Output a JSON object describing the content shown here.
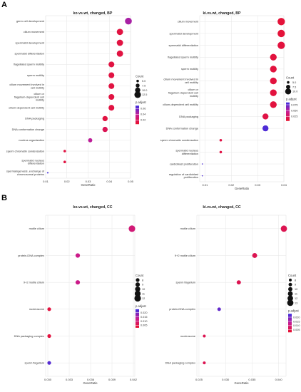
{
  "panel_letters": [
    "A",
    "B"
  ],
  "colors": {
    "gradient_low": "#e8102c",
    "gradient_mid": "#c81c92",
    "gradient_high": "#3c2ee0",
    "grid": "#e6e6e6",
    "axis_text": "#333333"
  },
  "chart_data": [
    {
      "type": "scatter",
      "title": "ko.vs.wt, changed, BP",
      "xlabel": "GeneRatio",
      "ylabel": "",
      "xlim": [
        0.01,
        0.05
      ],
      "xticks": [
        "0.01",
        "0.02",
        "0.03",
        "0.04",
        "0.05"
      ],
      "xtick_values": [
        0.01,
        0.02,
        0.03,
        0.04,
        0.05
      ],
      "grid": true,
      "legend_placement": "right",
      "size_legend": {
        "title": "Count",
        "labels": [
          "5.0",
          "7.5",
          "10.0",
          "12.5"
        ],
        "values": [
          5,
          7.5,
          10,
          12.5
        ]
      },
      "color_legend": {
        "title": "p.adjust",
        "labels": [
          "0.06",
          "0.04",
          "0.02"
        ],
        "values": [
          0.06,
          0.04,
          0.02
        ],
        "range": [
          0.005,
          0.07
        ]
      },
      "categories": [
        "germ cell development",
        "cilium movement",
        "spermatid development",
        "spermatid differentiation",
        "flagellated sperm motility",
        "sperm motility",
        "cilium movement involved in|cell motility",
        "cilium or|flagellum-dependent cell|motility",
        "cilium-dependent cell motility",
        "DNA packaging",
        "DNA conformation change",
        "nucleus organization",
        "sperm chromatin condensation",
        "spermatid nucleus|differentiation",
        "spermatogenesis, exchange of|chromosomal proteins"
      ],
      "gene_ratio": [
        0.049,
        0.045,
        0.045,
        0.045,
        0.041,
        0.041,
        0.041,
        0.041,
        0.041,
        0.038,
        0.038,
        0.031,
        0.019,
        0.019,
        0.011
      ],
      "count": [
        13,
        12,
        12,
        12,
        11,
        11,
        11,
        11,
        11,
        10,
        10,
        8,
        5,
        5,
        3
      ],
      "p_adjust": [
        0.045,
        0.012,
        0.012,
        0.012,
        0.012,
        0.012,
        0.012,
        0.012,
        0.012,
        0.012,
        0.018,
        0.04,
        0.012,
        0.012,
        0.068
      ]
    },
    {
      "type": "scatter",
      "title": "ki.vs.wt, changed, BP",
      "xlabel": "GeneRatio",
      "ylabel": "",
      "xlim": [
        0.008,
        0.04
      ],
      "xticks": [
        "0.01",
        "0.02",
        "0.03",
        "0.04"
      ],
      "xtick_values": [
        0.01,
        0.02,
        0.03,
        0.04
      ],
      "grid": true,
      "legend_placement": "right",
      "size_legend": {
        "title": "Count",
        "labels": [
          "5.0",
          "7.5",
          "10.0"
        ],
        "values": [
          5,
          7.5,
          10
        ]
      },
      "color_legend": {
        "title": "p.adjust",
        "labels": [
          "0.075",
          "0.050",
          "0.025"
        ],
        "values": [
          0.075,
          0.05,
          0.025
        ],
        "range": [
          0.005,
          0.085
        ]
      },
      "categories": [
        "cilium movement",
        "spermatid development",
        "spermatid differentiation",
        "flagellated sperm motility",
        "sperm motility",
        "cilium movement involved in|cell motility",
        "cilium or|flagellum-dependent cell|motility",
        "cilium-dependent cell motility",
        "DNA packaging",
        "DNA conformation change",
        "sperm chromatin condensation",
        "spermatid nucleus|differentiation",
        "cardioblast proliferation",
        "regulation of cardioblast|proliferation"
      ],
      "gene_ratio": [
        0.039,
        0.039,
        0.039,
        0.036,
        0.036,
        0.036,
        0.036,
        0.036,
        0.033,
        0.033,
        0.016,
        0.016,
        0.009,
        0.009
      ],
      "count": [
        12,
        12,
        12,
        11,
        11,
        11,
        11,
        11,
        10,
        10,
        5,
        5,
        3,
        3
      ],
      "p_adjust": [
        0.01,
        0.01,
        0.012,
        0.012,
        0.012,
        0.012,
        0.012,
        0.012,
        0.015,
        0.08,
        0.015,
        0.015,
        0.08,
        0.08
      ]
    },
    {
      "type": "scatter",
      "title": "ko.vs.wt, changed, CC",
      "xlabel": "GeneRatio",
      "ylabel": "",
      "xlim": [
        0.0297,
        0.0422
      ],
      "xticks": [
        "0.030",
        "0.033",
        "0.036",
        "0.039",
        "0.042"
      ],
      "xtick_values": [
        0.03,
        0.033,
        0.036,
        0.039,
        0.042
      ],
      "grid": true,
      "legend_placement": "right",
      "size_legend": {
        "title": "Count",
        "labels": [
          "8",
          "9",
          "10",
          "11",
          "12"
        ],
        "values": [
          8,
          9,
          10,
          11,
          12
        ]
      },
      "color_legend": {
        "title": "p.adjust",
        "labels": [
          "0.020",
          "0.015",
          "0.010",
          "0.005"
        ],
        "values": [
          0.02,
          0.015,
          0.01,
          0.005
        ],
        "range": [
          0.002,
          0.024
        ]
      },
      "categories": [
        "motile cilium",
        "protein-DNA complex",
        "9+2 motile cilium",
        "nucleosome",
        "DNA packaging complex",
        "sperm flagellum"
      ],
      "gene_ratio": [
        0.0418,
        0.0342,
        0.0342,
        0.0302,
        0.0302,
        0.0302
      ],
      "count": [
        12,
        9,
        9,
        8,
        8,
        8
      ],
      "p_adjust": [
        0.01,
        0.012,
        0.012,
        0.004,
        0.004,
        0.022
      ]
    },
    {
      "type": "scatter",
      "title": "ki.vs.wt, changed, CC",
      "xlabel": "GeneRatio",
      "ylabel": "",
      "xlim": [
        0.0246,
        0.0414
      ],
      "xticks": [
        "0.025",
        "0.030",
        "0.035",
        "0.040"
      ],
      "xtick_values": [
        0.025,
        0.03,
        0.035,
        0.04
      ],
      "grid": true,
      "legend_placement": "right",
      "size_legend": {
        "title": "Count",
        "labels": [
          "8",
          "9",
          "10",
          "11",
          "12",
          "13"
        ],
        "values": [
          8,
          9,
          10,
          11,
          12,
          13
        ]
      },
      "color_legend": {
        "title": "p.adjust",
        "labels": [
          "0.020",
          "0.015",
          "0.010",
          "0.005"
        ],
        "values": [
          0.02,
          0.015,
          0.01,
          0.005
        ],
        "range": [
          0.002,
          0.024
        ]
      },
      "categories": [
        "motile cilium",
        "9+2 motile cilium",
        "sperm flagellum",
        "protein-DNA complex",
        "nucleosome",
        "DNA packaging complex"
      ],
      "gene_ratio": [
        0.041,
        0.0355,
        0.0325,
        0.0288,
        0.026,
        0.026
      ],
      "count": [
        13,
        11,
        10,
        9,
        8,
        8
      ],
      "p_adjust": [
        0.006,
        0.006,
        0.006,
        0.021,
        0.006,
        0.006
      ]
    }
  ]
}
